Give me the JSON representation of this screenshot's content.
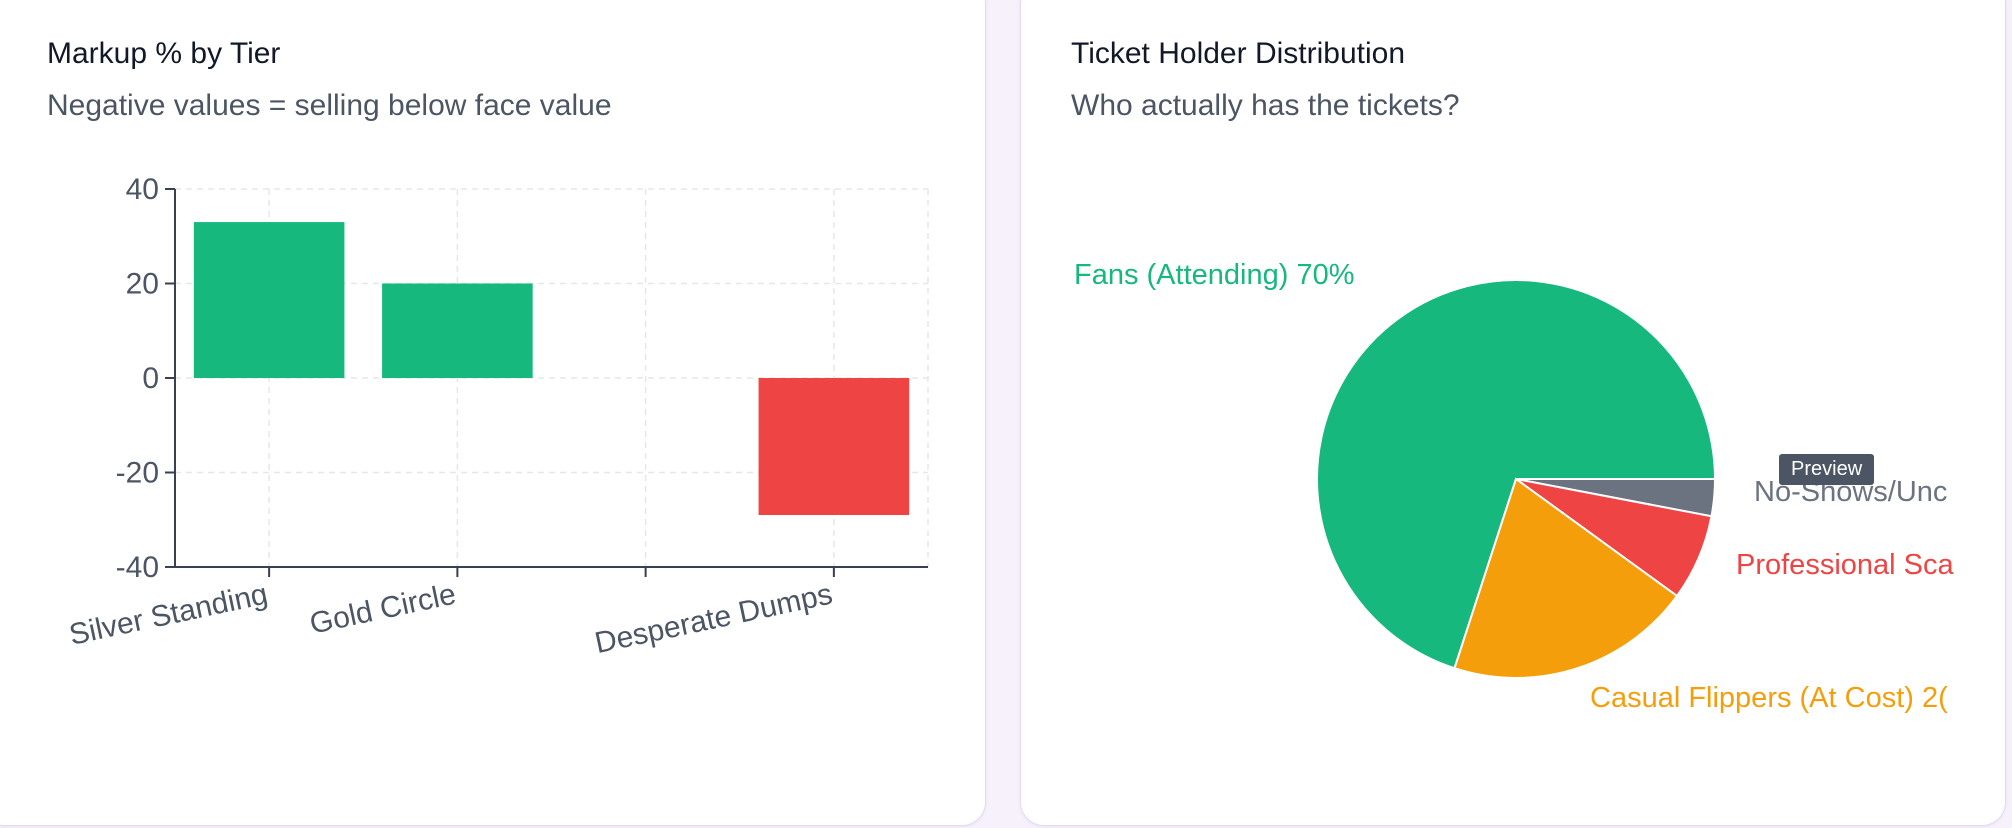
{
  "cards": {
    "markup": {
      "title": "Markup % by Tier",
      "subtitle": "Negative values = selling below face value"
    },
    "holders": {
      "title": "Ticket Holder Distribution",
      "subtitle": "Who actually has the tickets?"
    }
  },
  "tooltip": {
    "label": "Preview"
  },
  "chart_data": [
    {
      "type": "bar",
      "title": "Markup % by Tier",
      "subtitle": "Negative values = selling below face value",
      "categories": [
        "Silver Standing",
        "Gold Circle",
        "",
        "Desperate Dumps"
      ],
      "values": [
        33,
        20,
        null,
        -29
      ],
      "colors": [
        "#17b87d",
        "#17b87d",
        null,
        "#ef4444"
      ],
      "yticks": [
        40,
        20,
        0,
        -20,
        -40
      ],
      "ylim": [
        -40,
        40
      ],
      "grid": true,
      "xlabel": "",
      "ylabel": ""
    },
    {
      "type": "pie",
      "title": "Ticket Holder Distribution",
      "subtitle": "Who actually has the tickets?",
      "slices": [
        {
          "label": "Fans (Attending) 70%",
          "value": 70,
          "color": "#17b87d"
        },
        {
          "label": "No-Shows/Unc",
          "value": 3,
          "color": "#6b7280"
        },
        {
          "label": "Professional Sca",
          "value": 7,
          "color": "#ef4444"
        },
        {
          "label": "Casual Flippers (At Cost) 2(",
          "value": 20,
          "color": "#f59e0b"
        }
      ]
    }
  ]
}
